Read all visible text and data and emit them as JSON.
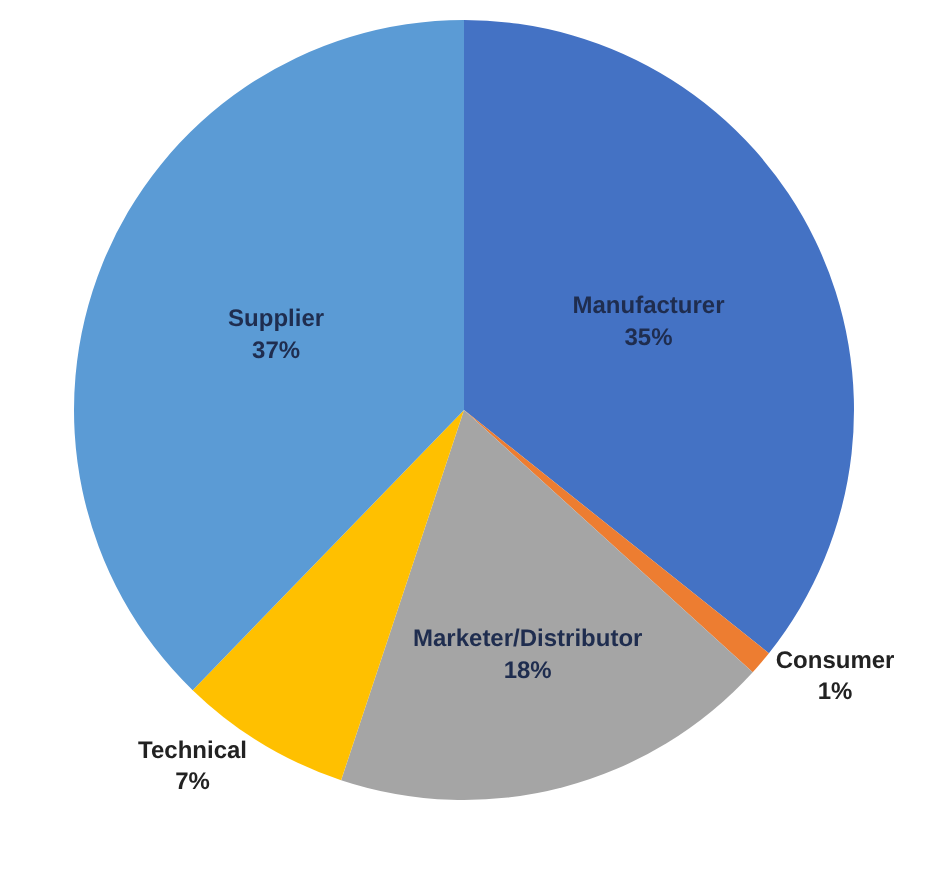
{
  "chart_data": {
    "type": "pie",
    "categories": [
      "Manufacturer",
      "Consumer",
      "Marketer/Distributor",
      "Technical",
      "Supplier"
    ],
    "values": [
      35,
      1,
      18,
      7,
      37
    ],
    "value_labels": [
      "35%",
      "1%",
      "18%",
      "7%",
      "37%"
    ],
    "colors": [
      "#4472c4",
      "#ed7d31",
      "#a5a5a5",
      "#ffc000",
      "#5b9bd5"
    ],
    "legend": false
  }
}
